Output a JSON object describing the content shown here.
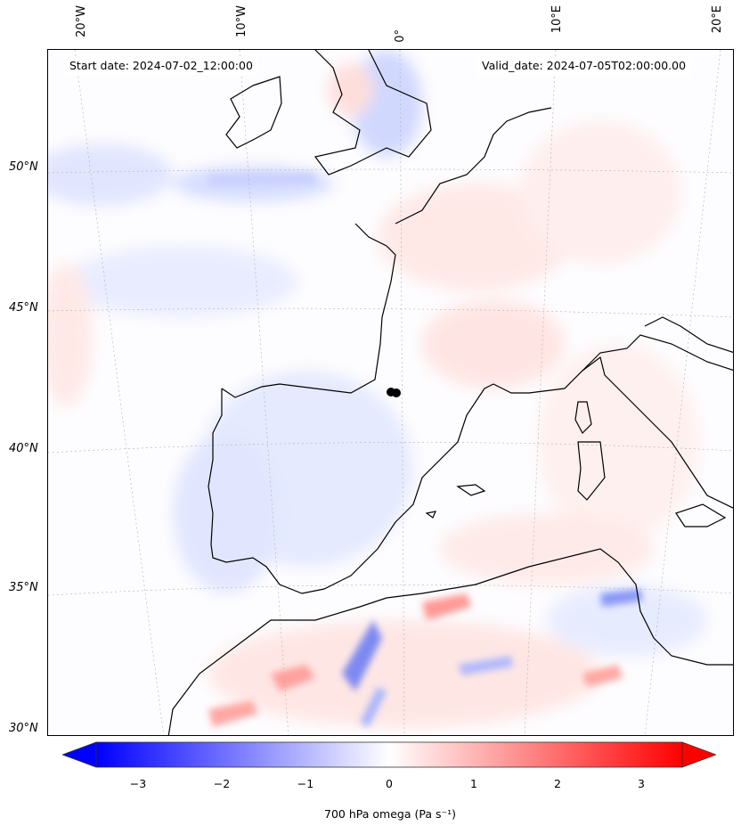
{
  "header": {
    "start_date": "Start date: 2024-07-02_12:00:00",
    "valid_date": "Valid_date: 2024-07-05T02:00:00.00"
  },
  "map": {
    "projection": "Lambert conformal",
    "grid": "dotted graticule",
    "lon_ticks": [
      "20°W",
      "10°W",
      "0°",
      "10°E",
      "20°E"
    ],
    "lat_ticks": [
      "50°N",
      "45°N",
      "40°N",
      "35°N",
      "30°N"
    ],
    "field": "700 hPa omega",
    "marker": {
      "name": "black dot",
      "location": "southwest France near Pyrenees"
    }
  },
  "colorbar": {
    "ticks": [
      "−3",
      "−2",
      "−1",
      "0",
      "1",
      "2",
      "3"
    ],
    "range": [
      -3.5,
      3.5
    ],
    "colormap": "bwr",
    "extend": "both",
    "label": "700 hPa omega (Pa s⁻¹)",
    "colors": {
      "min": "#0000ff",
      "mid": "#ffffff",
      "max": "#ff0000"
    }
  }
}
